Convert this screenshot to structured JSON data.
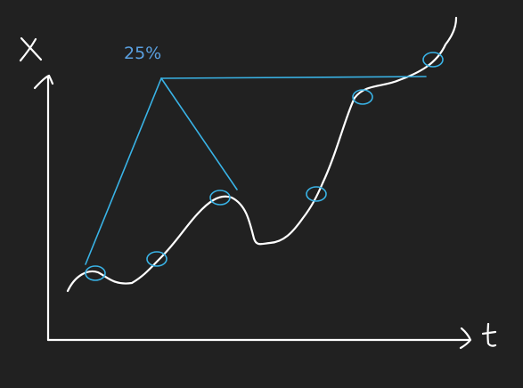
{
  "annotation": {
    "percent_label": "25%"
  },
  "axes": {
    "x_axis_label": "t",
    "y_axis_label": "x"
  },
  "colors": {
    "background": "#212121",
    "curve": "#ffffff",
    "markers": "#39b3e6",
    "label": "#5aa0e0"
  },
  "markers": {
    "count": 6
  }
}
